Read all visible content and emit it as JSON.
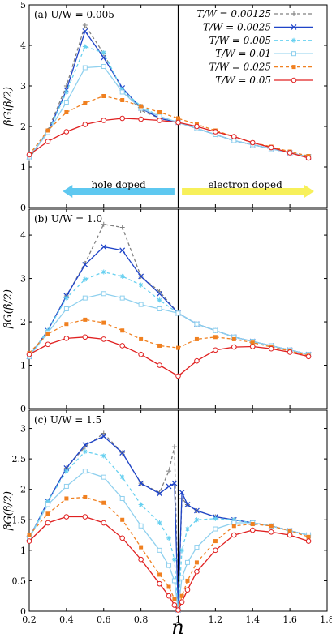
{
  "chart_data": {
    "type": "line",
    "xlabel": "n",
    "ylabel": "βG(β/2)",
    "xlim": [
      0.2,
      1.8
    ],
    "x_ticks": [
      "0.2",
      "0.4",
      "0.6",
      "0.8",
      "1",
      "1.2",
      "1.4",
      "1.6",
      "1.8"
    ],
    "legend_position": "top-right",
    "legend_title_text": "",
    "series_styles": [
      {
        "name": "T/W = 0.00125",
        "color": "#808080",
        "dash": "dashed",
        "marker": "plus"
      },
      {
        "name": "T/W = 0.0025",
        "color": "#1f44c8",
        "dash": "solid",
        "marker": "x"
      },
      {
        "name": "T/W = 0.005",
        "color": "#66d0f0",
        "dash": "dashed",
        "marker": "asterisk"
      },
      {
        "name": "T/W = 0.01",
        "color": "#8fd0ee",
        "dash": "solid",
        "marker": "square-open"
      },
      {
        "name": "T/W = 0.025",
        "color": "#f08020",
        "dash": "dashed",
        "marker": "square-filled"
      },
      {
        "name": "T/W = 0.05",
        "color": "#e02020",
        "dash": "solid",
        "marker": "circle-open"
      }
    ],
    "panels": [
      {
        "label": "(a) U/W = 0.005",
        "ylim": [
          0,
          5
        ],
        "y_ticks": [
          "0",
          "1",
          "2",
          "3",
          "4",
          "5"
        ],
        "annotations": [
          "hole doped",
          "electron doped"
        ],
        "series": [
          {
            "name": "T/W = 0.00125",
            "x": [
              0.2,
              0.3,
              0.4,
              0.5,
              0.6,
              0.7,
              0.8,
              0.9,
              1.0,
              1.1,
              1.2,
              1.3,
              1.4,
              1.5,
              1.6,
              1.7
            ],
            "y": [
              1.2,
              1.9,
              3.0,
              4.5,
              3.8,
              2.9,
              2.4,
              2.2,
              2.1,
              1.95,
              1.8,
              1.65,
              1.55,
              1.45,
              1.35,
              1.25
            ]
          },
          {
            "name": "T/W = 0.0025",
            "x": [
              0.2,
              0.3,
              0.4,
              0.5,
              0.6,
              0.7,
              0.8,
              0.9,
              1.0,
              1.1,
              1.2,
              1.3,
              1.4,
              1.5,
              1.6,
              1.7
            ],
            "y": [
              1.25,
              1.85,
              2.9,
              4.35,
              3.7,
              2.95,
              2.45,
              2.2,
              2.1,
              1.95,
              1.8,
              1.65,
              1.55,
              1.45,
              1.35,
              1.25
            ]
          },
          {
            "name": "T/W = 0.005",
            "x": [
              0.2,
              0.3,
              0.4,
              0.5,
              0.6,
              0.7,
              0.8,
              0.9,
              1.0,
              1.1,
              1.2,
              1.3,
              1.4,
              1.5,
              1.6,
              1.7
            ],
            "y": [
              1.25,
              1.85,
              2.85,
              3.97,
              3.82,
              2.9,
              2.5,
              2.25,
              2.1,
              1.95,
              1.8,
              1.65,
              1.55,
              1.45,
              1.35,
              1.25
            ]
          },
          {
            "name": "T/W = 0.01",
            "x": [
              0.2,
              0.3,
              0.4,
              0.5,
              0.6,
              0.7,
              0.8,
              0.9,
              1.0,
              1.1,
              1.2,
              1.3,
              1.4,
              1.5,
              1.6,
              1.7
            ],
            "y": [
              1.25,
              1.85,
              2.6,
              3.45,
              3.48,
              2.85,
              2.45,
              2.25,
              2.1,
              1.95,
              1.8,
              1.65,
              1.55,
              1.45,
              1.35,
              1.25
            ]
          },
          {
            "name": "T/W = 0.025",
            "x": [
              0.2,
              0.3,
              0.4,
              0.5,
              0.6,
              0.7,
              0.8,
              0.9,
              1.0,
              1.1,
              1.2,
              1.3,
              1.4,
              1.5,
              1.6,
              1.7
            ],
            "y": [
              1.3,
              1.9,
              2.35,
              2.58,
              2.75,
              2.65,
              2.5,
              2.35,
              2.2,
              2.05,
              1.9,
              1.75,
              1.6,
              1.5,
              1.38,
              1.27
            ]
          },
          {
            "name": "T/W = 0.05",
            "x": [
              0.2,
              0.3,
              0.4,
              0.5,
              0.6,
              0.7,
              0.8,
              0.9,
              1.0,
              1.1,
              1.2,
              1.3,
              1.4,
              1.5,
              1.6,
              1.7
            ],
            "y": [
              1.3,
              1.63,
              1.87,
              2.05,
              2.15,
              2.2,
              2.18,
              2.15,
              2.1,
              2.0,
              1.87,
              1.75,
              1.6,
              1.48,
              1.35,
              1.22
            ]
          }
        ]
      },
      {
        "label": "(b) U/W = 1.0",
        "ylim": [
          0,
          4.6
        ],
        "y_ticks": [
          "0",
          "1",
          "2",
          "3",
          "4"
        ],
        "series": [
          {
            "name": "T/W = 0.00125",
            "x": [
              0.2,
              0.3,
              0.4,
              0.5,
              0.6,
              0.7,
              0.8,
              0.9,
              1.0,
              1.1,
              1.2,
              1.3,
              1.4,
              1.5,
              1.6,
              1.7
            ],
            "y": [
              1.2,
              1.8,
              2.6,
              3.35,
              4.25,
              4.18,
              3.05,
              2.7,
              2.2,
              1.95,
              1.8,
              1.65,
              1.55,
              1.45,
              1.35,
              1.25
            ]
          },
          {
            "name": "T/W = 0.0025",
            "x": [
              0.2,
              0.3,
              0.4,
              0.5,
              0.6,
              0.7,
              0.8,
              0.9,
              1.0,
              1.1,
              1.2,
              1.3,
              1.4,
              1.5,
              1.6,
              1.7
            ],
            "y": [
              1.2,
              1.8,
              2.6,
              3.32,
              3.73,
              3.65,
              3.05,
              2.65,
              2.2,
              1.95,
              1.8,
              1.65,
              1.55,
              1.45,
              1.35,
              1.25
            ]
          },
          {
            "name": "T/W = 0.005",
            "x": [
              0.2,
              0.3,
              0.4,
              0.5,
              0.6,
              0.7,
              0.8,
              0.9,
              1.0,
              1.1,
              1.2,
              1.3,
              1.4,
              1.5,
              1.6,
              1.7
            ],
            "y": [
              1.2,
              1.8,
              2.55,
              2.98,
              3.15,
              3.05,
              2.85,
              2.5,
              2.2,
              1.95,
              1.8,
              1.65,
              1.55,
              1.45,
              1.35,
              1.25
            ]
          },
          {
            "name": "T/W = 0.01",
            "x": [
              0.2,
              0.3,
              0.4,
              0.5,
              0.6,
              0.7,
              0.8,
              0.9,
              1.0,
              1.1,
              1.2,
              1.3,
              1.4,
              1.5,
              1.6,
              1.7
            ],
            "y": [
              1.2,
              1.75,
              2.3,
              2.55,
              2.65,
              2.55,
              2.4,
              2.3,
              2.2,
              1.95,
              1.8,
              1.65,
              1.55,
              1.45,
              1.35,
              1.25
            ]
          },
          {
            "name": "T/W = 0.025",
            "x": [
              0.2,
              0.3,
              0.4,
              0.5,
              0.6,
              0.7,
              0.8,
              0.9,
              1.0,
              1.1,
              1.2,
              1.3,
              1.4,
              1.5,
              1.6,
              1.7
            ],
            "y": [
              1.28,
              1.72,
              1.95,
              2.05,
              1.98,
              1.8,
              1.6,
              1.45,
              1.4,
              1.6,
              1.65,
              1.6,
              1.52,
              1.42,
              1.33,
              1.22
            ]
          },
          {
            "name": "T/W = 0.05",
            "x": [
              0.2,
              0.3,
              0.4,
              0.5,
              0.6,
              0.7,
              0.8,
              0.9,
              1.0,
              1.1,
              1.2,
              1.3,
              1.4,
              1.5,
              1.6,
              1.7
            ],
            "y": [
              1.25,
              1.48,
              1.62,
              1.65,
              1.6,
              1.45,
              1.25,
              1.0,
              0.75,
              1.1,
              1.35,
              1.42,
              1.43,
              1.38,
              1.3,
              1.2
            ]
          }
        ]
      },
      {
        "label": "(c) U/W = 1.5",
        "ylim": [
          0,
          3.3
        ],
        "y_ticks": [
          "0",
          "0.5",
          "1",
          "1.5",
          "2",
          "2.5",
          "3"
        ],
        "series": [
          {
            "name": "T/W = 0.00125",
            "x": [
              0.2,
              0.3,
              0.4,
              0.5,
              0.6,
              0.7,
              0.8,
              0.9,
              0.95,
              0.98,
              1.0,
              1.02,
              1.05,
              1.1,
              1.2,
              1.3,
              1.4,
              1.5,
              1.6,
              1.7
            ],
            "y": [
              1.2,
              1.8,
              2.35,
              2.7,
              2.92,
              2.6,
              2.1,
              1.95,
              2.3,
              2.7,
              0.02,
              1.85,
              1.75,
              1.65,
              1.55,
              1.5,
              1.45,
              1.4,
              1.32,
              1.25
            ]
          },
          {
            "name": "T/W = 0.0025",
            "x": [
              0.2,
              0.3,
              0.4,
              0.5,
              0.6,
              0.7,
              0.8,
              0.9,
              0.95,
              0.98,
              1.0,
              1.02,
              1.05,
              1.1,
              1.2,
              1.3,
              1.4,
              1.5,
              1.6,
              1.7
            ],
            "y": [
              1.2,
              1.8,
              2.35,
              2.73,
              2.87,
              2.6,
              2.1,
              1.93,
              2.05,
              2.1,
              0.02,
              1.95,
              1.75,
              1.65,
              1.55,
              1.5,
              1.45,
              1.4,
              1.32,
              1.25
            ]
          },
          {
            "name": "T/W = 0.005",
            "x": [
              0.2,
              0.3,
              0.4,
              0.5,
              0.6,
              0.7,
              0.8,
              0.9,
              0.95,
              0.98,
              1.0,
              1.02,
              1.05,
              1.1,
              1.2,
              1.3,
              1.4,
              1.5,
              1.6,
              1.7
            ],
            "y": [
              1.2,
              1.8,
              2.3,
              2.62,
              2.55,
              2.2,
              1.75,
              1.45,
              1.2,
              0.85,
              0.02,
              1.0,
              1.35,
              1.5,
              1.52,
              1.5,
              1.45,
              1.4,
              1.32,
              1.25
            ]
          },
          {
            "name": "T/W = 0.01",
            "x": [
              0.2,
              0.3,
              0.4,
              0.5,
              0.6,
              0.7,
              0.8,
              0.9,
              0.95,
              0.98,
              1.0,
              1.02,
              1.05,
              1.1,
              1.2,
              1.3,
              1.4,
              1.5,
              1.6,
              1.7
            ],
            "y": [
              1.2,
              1.75,
              2.05,
              2.3,
              2.2,
              1.85,
              1.4,
              1.0,
              0.75,
              0.5,
              0.02,
              0.55,
              0.8,
              1.05,
              1.35,
              1.45,
              1.45,
              1.4,
              1.32,
              1.25
            ]
          },
          {
            "name": "T/W = 0.025",
            "x": [
              0.2,
              0.3,
              0.4,
              0.5,
              0.6,
              0.7,
              0.8,
              0.9,
              0.95,
              0.98,
              1.0,
              1.02,
              1.05,
              1.1,
              1.2,
              1.3,
              1.4,
              1.5,
              1.6,
              1.7
            ],
            "y": [
              1.25,
              1.6,
              1.85,
              1.87,
              1.78,
              1.5,
              1.05,
              0.6,
              0.4,
              0.2,
              0.02,
              0.25,
              0.5,
              0.8,
              1.15,
              1.4,
              1.43,
              1.4,
              1.32,
              1.22
            ]
          },
          {
            "name": "T/W = 0.05",
            "x": [
              0.2,
              0.3,
              0.4,
              0.5,
              0.6,
              0.7,
              0.8,
              0.9,
              0.95,
              0.98,
              1.0,
              1.02,
              1.05,
              1.1,
              1.2,
              1.3,
              1.4,
              1.5,
              1.6,
              1.7
            ],
            "y": [
              1.15,
              1.45,
              1.55,
              1.55,
              1.45,
              1.2,
              0.85,
              0.45,
              0.25,
              0.1,
              0.02,
              0.15,
              0.35,
              0.65,
              1.0,
              1.25,
              1.33,
              1.3,
              1.25,
              1.15
            ]
          }
        ]
      }
    ]
  }
}
